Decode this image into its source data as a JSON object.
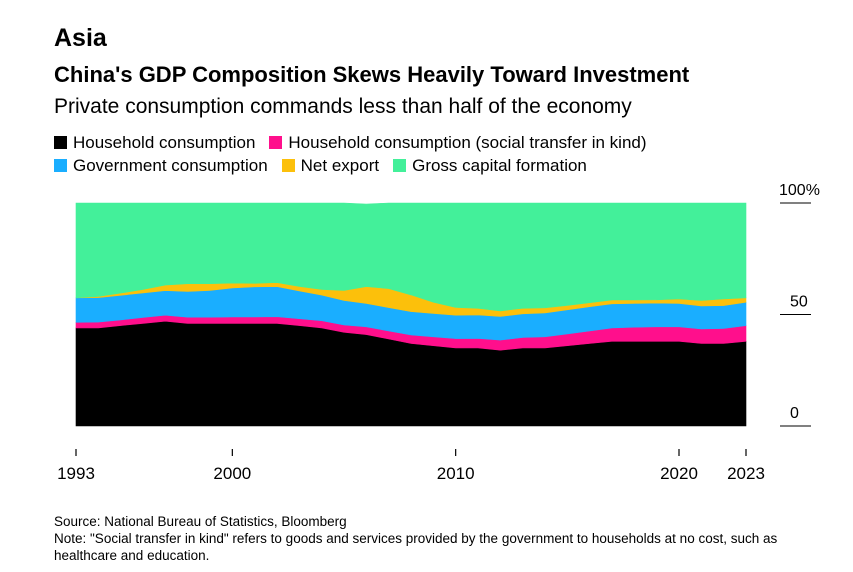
{
  "header": {
    "section": "Asia",
    "title": "China's GDP Composition Skews Heavily Toward Investment",
    "subtitle": "Private consumption commands less than half of the economy"
  },
  "legend": {
    "row1": [
      {
        "label": "Household consumption",
        "color": "#000000"
      },
      {
        "label": "Household consumption (social transfer in kind)",
        "color": "#ff0f8c"
      }
    ],
    "row2": [
      {
        "label": "Government consumption",
        "color": "#1aaeff"
      },
      {
        "label": "Net export",
        "color": "#fcc00b"
      },
      {
        "label": "Gross capital formation",
        "color": "#43f09a"
      }
    ]
  },
  "chart_data": {
    "type": "area",
    "stacked": true,
    "x": [
      1993,
      1994,
      1995,
      1996,
      1997,
      1998,
      1999,
      2000,
      2001,
      2002,
      2003,
      2004,
      2005,
      2006,
      2007,
      2008,
      2009,
      2010,
      2011,
      2012,
      2013,
      2014,
      2015,
      2016,
      2017,
      2018,
      2019,
      2020,
      2021,
      2022,
      2023
    ],
    "series": [
      {
        "name": "Household consumption",
        "color": "#000000",
        "values": [
          44,
          44,
          45,
          46,
          47,
          46,
          46,
          46,
          46,
          46,
          45,
          44,
          42,
          41,
          39,
          37,
          36,
          35,
          35,
          34,
          35,
          35,
          36,
          37,
          38,
          38,
          38,
          38,
          37,
          37,
          38
        ]
      },
      {
        "name": "Household consumption (social transfer in kind)",
        "color": "#ff0f8c",
        "values": [
          2.5,
          2.6,
          2.6,
          2.7,
          2.7,
          2.8,
          2.8,
          2.9,
          2.9,
          3.0,
          3.1,
          3.2,
          3.3,
          3.5,
          3.6,
          3.8,
          4.0,
          4.2,
          4.3,
          4.5,
          4.7,
          5.0,
          5.3,
          5.6,
          6.0,
          6.3,
          6.5,
          6.5,
          6.5,
          6.7,
          7.0
        ]
      },
      {
        "name": "Government consumption",
        "color": "#1aaeff",
        "values": [
          11,
          11,
          11,
          11,
          11,
          11.5,
          12,
          13,
          13.5,
          13.5,
          12.5,
          11.5,
          11,
          10.5,
          10.5,
          10.5,
          10.5,
          10.5,
          10.5,
          10.6,
          10.6,
          10.7,
          10.8,
          10.9,
          10.8,
          10.7,
          10.6,
          10.5,
          10.3,
          10.3,
          10.5
        ]
      },
      {
        "name": "Net export",
        "color": "#fcc00b",
        "values": [
          0.0,
          0.5,
          1.0,
          1.5,
          2.5,
          3.5,
          3.0,
          2.2,
          1.6,
          1.8,
          2.0,
          2.5,
          4.5,
          7.5,
          8.5,
          7.5,
          5.0,
          3.5,
          3.0,
          2.5,
          2.5,
          2.3,
          2.0,
          1.8,
          1.7,
          1.5,
          1.5,
          2.0,
          2.5,
          3.0,
          2.0
        ]
      },
      {
        "name": "Gross capital formation",
        "color": "#43f09a",
        "values": [
          42.5,
          41.9,
          40.4,
          38.8,
          36.8,
          36.2,
          36.2,
          35.9,
          36.0,
          35.7,
          37.4,
          38.8,
          39.2,
          37.0,
          38.4,
          41.2,
          44.5,
          46.8,
          47.2,
          48.4,
          47.2,
          47.0,
          45.9,
          44.7,
          43.5,
          43.5,
          43.4,
          43.0,
          43.7,
          43.0,
          42.5
        ]
      }
    ],
    "xticks": [
      1993,
      2000,
      2010,
      2020,
      2023
    ],
    "yticks": [
      0,
      50,
      "100%"
    ],
    "ylim": [
      0,
      100
    ],
    "xlim": [
      1993,
      2023
    ]
  },
  "footer": {
    "source": "Source: National Bureau of Statistics, Bloomberg",
    "note": "Note: \"Social transfer in kind\" refers to goods and services provided by the government to households at no cost, such as healthcare and education."
  }
}
